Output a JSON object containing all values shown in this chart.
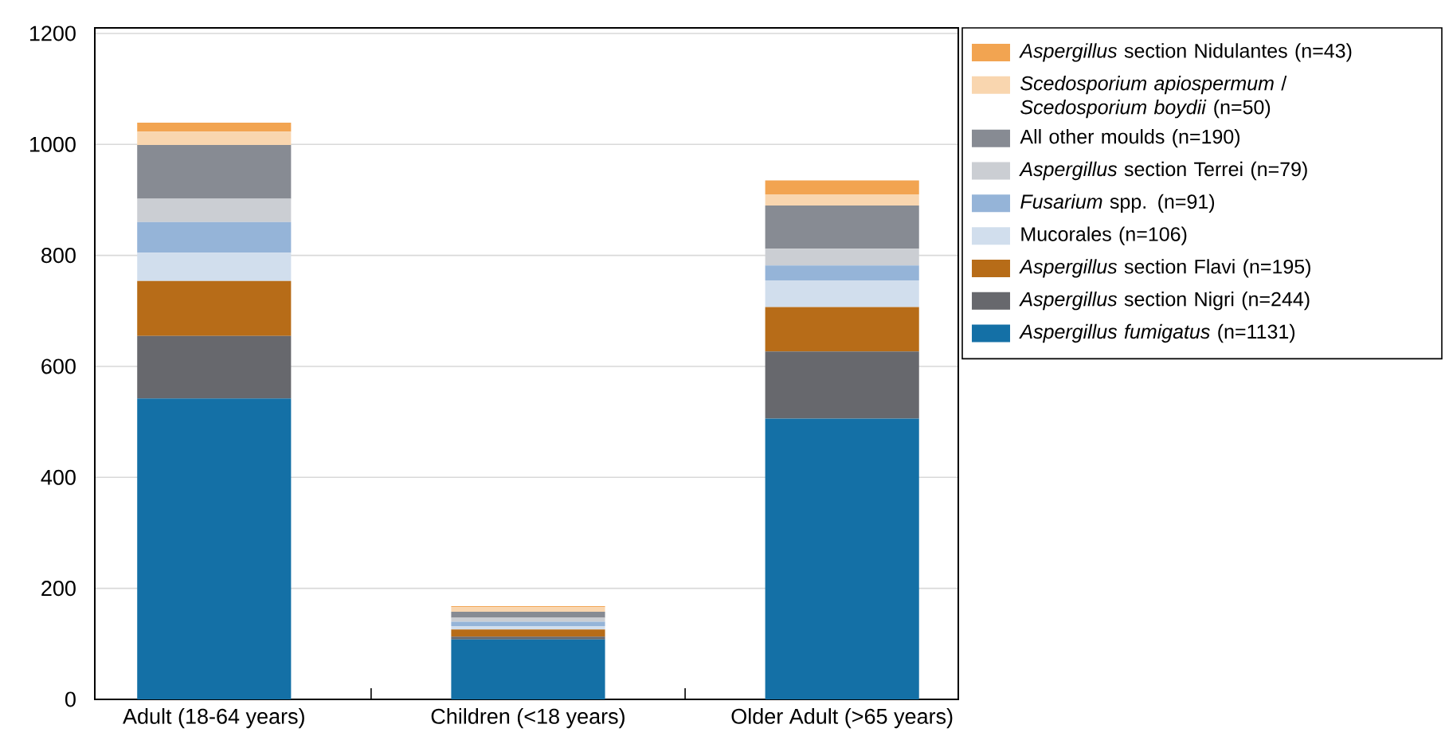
{
  "chart_data": {
    "type": "bar",
    "stacked": true,
    "categories": [
      "Adult (18-64 years)",
      "Children (<18 years)",
      "Older Adult (>65 years)"
    ],
    "series": [
      {
        "name": "*Aspergillus fumigatus* (n=1131)",
        "color": "#1470a6",
        "values": [
          542,
          108,
          506
        ]
      },
      {
        "name": "*Aspergillus* section Nigri (n=244)",
        "color": "#67686d",
        "values": [
          113,
          5,
          121
        ]
      },
      {
        "name": "*Aspergillus* section Flavi (n=195)",
        "color": "#b76c18",
        "values": [
          99,
          13,
          80
        ]
      },
      {
        "name": "Mucorales (n=106)",
        "color": "#d1deed",
        "values": [
          51,
          6,
          48
        ]
      },
      {
        "name": "*Fusarium* spp. (n=91)",
        "color": "#95b4d8",
        "values": [
          55,
          8,
          27
        ]
      },
      {
        "name": "*Aspergillus* section Terrei (n=79)",
        "color": "#cbced3",
        "values": [
          42,
          7,
          30
        ]
      },
      {
        "name": "All other moulds (n=190)",
        "color": "#878b93",
        "values": [
          97,
          11,
          78
        ]
      },
      {
        "name": "*Scedosporium apiospermum* / *Scedosporium boydii* (n=50)",
        "color": "#f9d6af",
        "values": [
          24,
          8,
          20
        ]
      },
      {
        "name": "*Aspergillus* section Nidulantes (n=43)",
        "color": "#f2a451",
        "values": [
          16,
          2,
          25
        ]
      }
    ],
    "ylim": [
      0,
      1210
    ],
    "yticks": [
      0,
      200,
      400,
      600,
      800,
      1000,
      1200
    ],
    "grid": "y",
    "legend": "top right"
  }
}
